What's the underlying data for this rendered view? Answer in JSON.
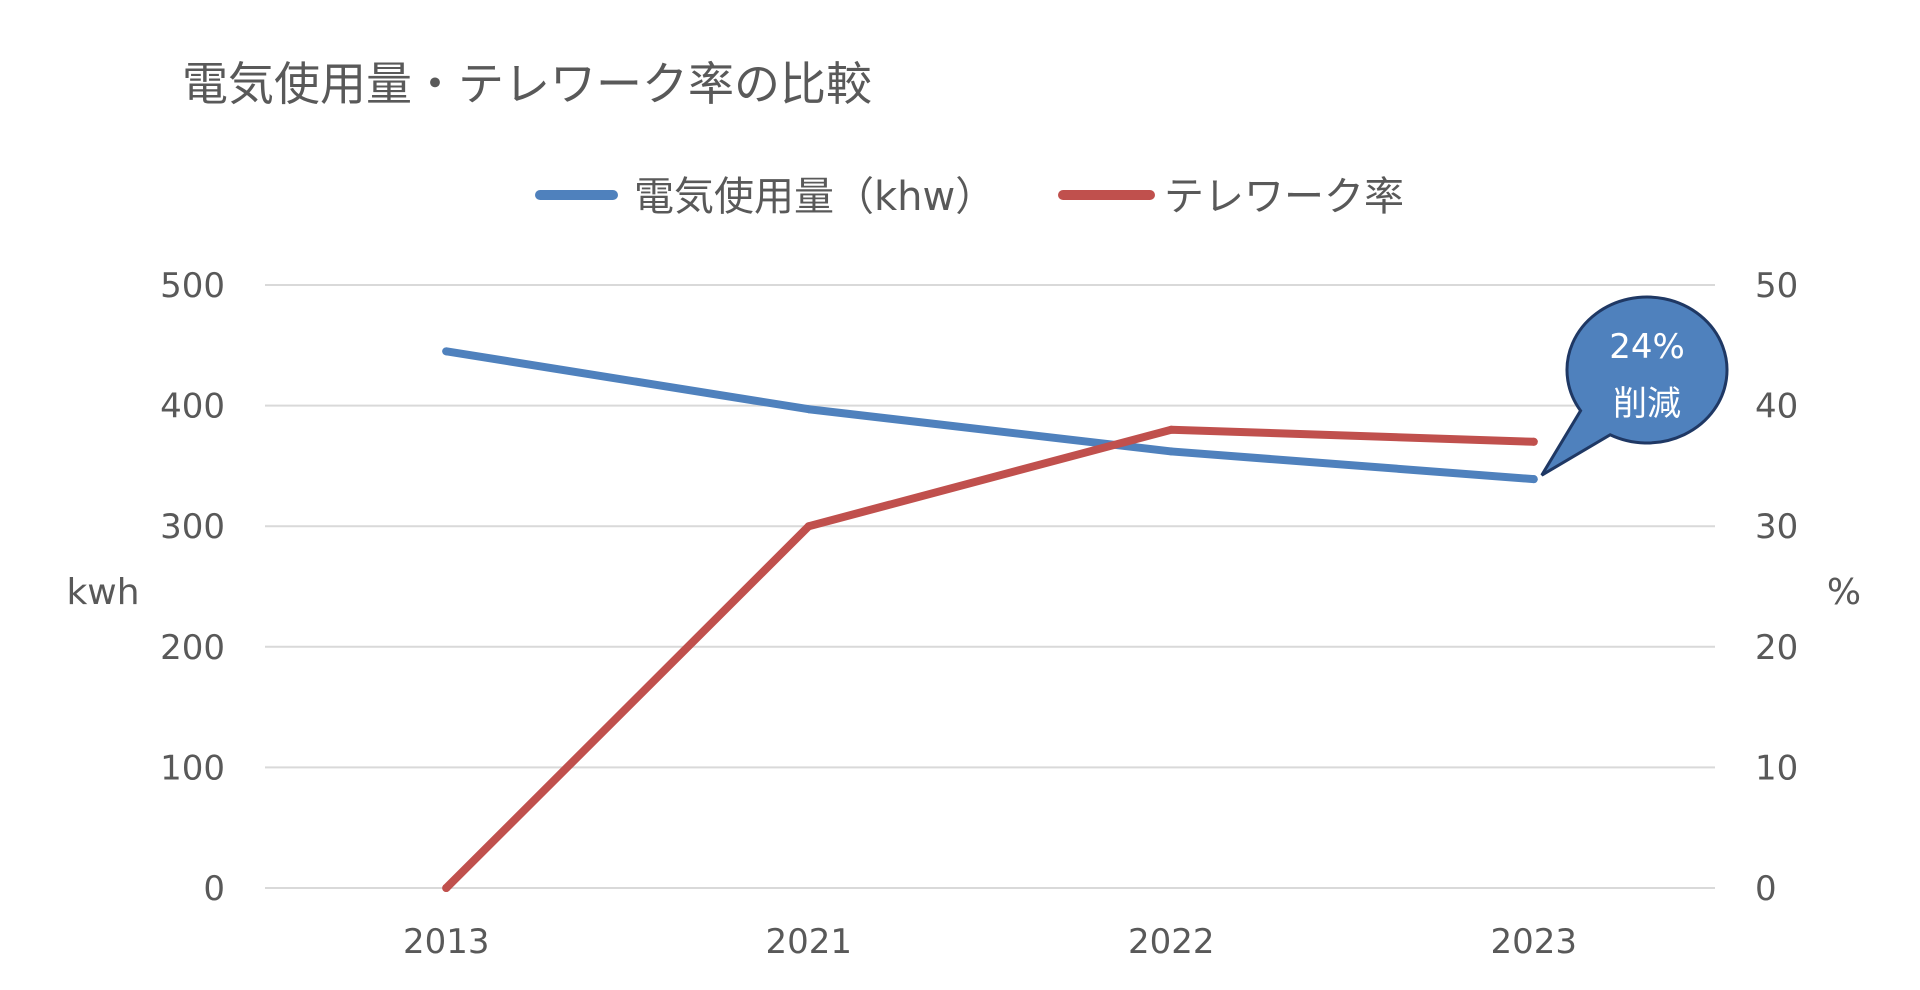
{
  "chart_data": {
    "type": "line",
    "title": "電気使用量・テレワーク率の比較",
    "categories": [
      "2013",
      "2021",
      "2022",
      "2023"
    ],
    "series": [
      {
        "name": "電気使用量（khw）",
        "axis": "left",
        "color": "#4f81bd",
        "values": [
          445,
          397,
          362,
          339
        ]
      },
      {
        "name": "テレワーク率",
        "axis": "right",
        "color": "#c0504d",
        "values": [
          0,
          30,
          38,
          37
        ]
      }
    ],
    "y_left": {
      "label": "kwh",
      "ylim": [
        0,
        500
      ],
      "ticks": [
        "0",
        "100",
        "200",
        "300",
        "400",
        "500"
      ]
    },
    "y_right": {
      "label": "%",
      "ylim": [
        0,
        50
      ],
      "ticks": [
        "0",
        "10",
        "20",
        "30",
        "40",
        "50"
      ]
    },
    "grid": true,
    "legend_position": "top",
    "annotation": {
      "line1": "24%",
      "line2": "削減",
      "target_category": "2023",
      "target_series": "電気使用量（khw）",
      "color": "#4f81bd"
    }
  }
}
